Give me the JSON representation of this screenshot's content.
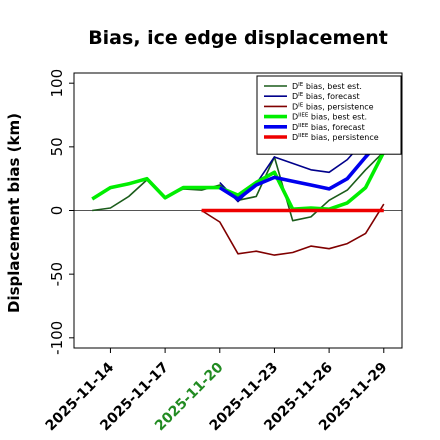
{
  "chart_data": {
    "type": "line",
    "title": "Bias, ice edge displacement",
    "xlabel": "",
    "ylabel": "Displacement bias (km)",
    "ylim": [
      -108,
      108
    ],
    "yticks": [
      "-100",
      "-50",
      "0",
      "50",
      "100"
    ],
    "xlim": [
      "2025-11-12",
      "2025-11-30"
    ],
    "x_tick_labels": [
      "2025-11-14",
      "2025-11-17",
      "2025-11-20",
      "2025-11-23",
      "2025-11-26",
      "2025-11-29"
    ],
    "highlight_tick": "2025-11-20",
    "highlight_color": "#228b22",
    "zero_line": true,
    "legend_position": "top-right",
    "series": [
      {
        "name": "D^IE bias, best est.",
        "color": "#1a5c1a",
        "width": "thin",
        "x": [
          "2025-11-13",
          "2025-11-14",
          "2025-11-15",
          "2025-11-16",
          "2025-11-17",
          "2025-11-18",
          "2025-11-19",
          "2025-11-20",
          "2025-11-21",
          "2025-11-22",
          "2025-11-23",
          "2025-11-24",
          "2025-11-25",
          "2025-11-26",
          "2025-11-27",
          "2025-11-28",
          "2025-11-29"
        ],
        "y": [
          0,
          2,
          11,
          24,
          10,
          17,
          16,
          20,
          8,
          11,
          42,
          -8,
          -5,
          8,
          16,
          32,
          46
        ]
      },
      {
        "name": "D^IE bias, forecast",
        "color": "#00008b",
        "width": "thin",
        "x": [
          "2025-11-20",
          "2025-11-21",
          "2025-11-22",
          "2025-11-23",
          "2025-11-24",
          "2025-11-25",
          "2025-11-26",
          "2025-11-27",
          "2025-11-28",
          "2025-11-29"
        ],
        "y": [
          22,
          7,
          21,
          42,
          37,
          32,
          30,
          40,
          56,
          60
        ]
      },
      {
        "name": "D^IE bias, persistence",
        "color": "#800000",
        "width": "thin",
        "x": [
          "2025-11-19",
          "2025-11-20",
          "2025-11-21",
          "2025-11-22",
          "2025-11-23",
          "2025-11-24",
          "2025-11-25",
          "2025-11-26",
          "2025-11-27",
          "2025-11-28",
          "2025-11-29"
        ],
        "y": [
          0,
          -9,
          -34,
          -32,
          -35,
          -33,
          -28,
          -30,
          -26,
          -18,
          5
        ]
      },
      {
        "name": "D^IIEE bias, best est.",
        "color": "#00ee00",
        "width": "thick",
        "x": [
          "2025-11-13",
          "2025-11-14",
          "2025-11-15",
          "2025-11-16",
          "2025-11-17",
          "2025-11-18",
          "2025-11-19",
          "2025-11-20",
          "2025-11-21",
          "2025-11-22",
          "2025-11-23",
          "2025-11-24",
          "2025-11-25",
          "2025-11-26",
          "2025-11-27",
          "2025-11-28",
          "2025-11-29"
        ],
        "y": [
          9,
          18,
          21,
          25,
          10,
          18,
          18,
          18,
          12,
          22,
          30,
          1,
          2,
          1,
          6,
          18,
          46
        ]
      },
      {
        "name": "D^IIEE bias, forecast",
        "color": "#0000ee",
        "width": "thick",
        "x": [
          "2025-11-20",
          "2025-11-21",
          "2025-11-22",
          "2025-11-23",
          "2025-11-24",
          "2025-11-25",
          "2025-11-26",
          "2025-11-27",
          "2025-11-28",
          "2025-11-29"
        ],
        "y": [
          18,
          9,
          20,
          26,
          23,
          20,
          17,
          25,
          42,
          58
        ]
      },
      {
        "name": "D^IIEE bias, persistence",
        "color": "#ee0000",
        "width": "thick",
        "x": [
          "2025-11-19",
          "2025-11-29"
        ],
        "y": [
          0,
          0
        ]
      }
    ],
    "legend": [
      {
        "base": "D",
        "sup": "IE",
        "rest": " bias, best est."
      },
      {
        "base": "D",
        "sup": "IE",
        "rest": " bias, forecast"
      },
      {
        "base": "D",
        "sup": "IE",
        "rest": " bias, persistence"
      },
      {
        "base": "D",
        "sup": "IIEE",
        "rest": " bias, best est."
      },
      {
        "base": "D",
        "sup": "IIEE",
        "rest": " bias, forecast"
      },
      {
        "base": "D",
        "sup": "IIEE",
        "rest": " bias, persistence"
      }
    ]
  }
}
